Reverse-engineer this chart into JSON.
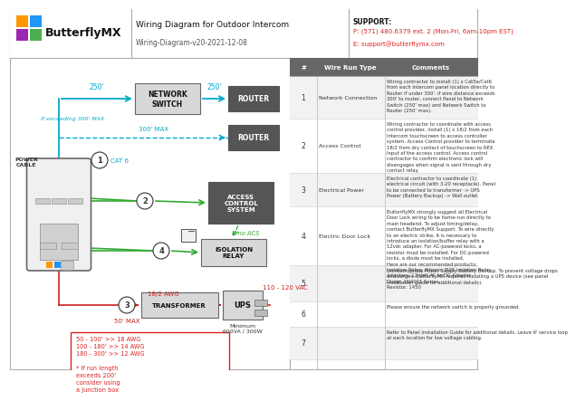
{
  "title": "Wiring Diagram for Outdoor Intercom",
  "subtitle": "Wiring-Diagram-v20-2021-12-08",
  "support_label": "SUPPORT:",
  "support_phone": "P: (571) 480.6379 ext. 2 (Mon-Fri, 6am-10pm EST)",
  "support_email": "E: support@butterflymx.com",
  "bg_color": "#ffffff",
  "cyan": "#00aacc",
  "green": "#33aa33",
  "red": "#cc2222",
  "dark_box": "#555555",
  "light_box_fc": "#e8e8e8",
  "wire_rows": [
    {
      "num": "1",
      "type": "Network Connection",
      "comment": "Wiring contractor to install (1) x Cat5e/Cat6\nfrom each Intercom panel location directly to\nRouter if under 300'. If wire distance exceeds\n300' to router, connect Panel to Network\nSwitch (250' max) and Network Switch to\nRouter (250' max)."
    },
    {
      "num": "2",
      "type": "Access Control",
      "comment": "Wiring contractor to coordinate with access\ncontrol provider, install (1) x 18/2 from each\nIntercom touchscreen to access controller\nsystem. Access Control provider to terminate\n18/2 from dry contact of touchscreen to REX\nInput of the access control. Access control\ncontractor to confirm electronic lock will\ndisengages when signal is sent through dry\ncontact relay."
    },
    {
      "num": "3",
      "type": "Electrical Power",
      "comment": "Electrical contractor to coordinate (1)\nelectrical circuit (with 3-20 receptacle). Panel\nto be connected to transformer -> UPS\nPower (Battery Backup) -> Wall outlet"
    },
    {
      "num": "4",
      "type": "Electric Door Lock",
      "comment": "ButterflyMX strongly suggest all Electrical\nDoor Lock wiring to be home-run directly to\nmain headend. To adjust timing/delay,\ncontact ButterflyMX Support. To wire directly\nto an electric strike, it is necessary to\nintroduce an isolation/buffer relay with a\n12vdc adapter. For AC-powered locks, a\nresistor must be installed. For DC-powered\nlocks, a diode must be installed.\nHere are our recommended products:\nIsolation Relay: Altronix IR05 Isolation Relay\nAdapters: 12 Volt AC to DC Adapter\nDiode: 1N4001 Series\nResistor: 1450"
    },
    {
      "num": "5",
      "type": "",
      "comment": "Uninterruptible Power Supply Battery Backup. To prevent voltage drops\nand surges, ButterflyMX requires installing a UPS device (see panel\ninstallation guide for additional details)."
    },
    {
      "num": "6",
      "type": "",
      "comment": "Please ensure the network switch is properly grounded."
    },
    {
      "num": "7",
      "type": "",
      "comment": "Refer to Panel Installation Guide for additional details. Leave 6' service loop\nat each location for low voltage cabling."
    }
  ]
}
